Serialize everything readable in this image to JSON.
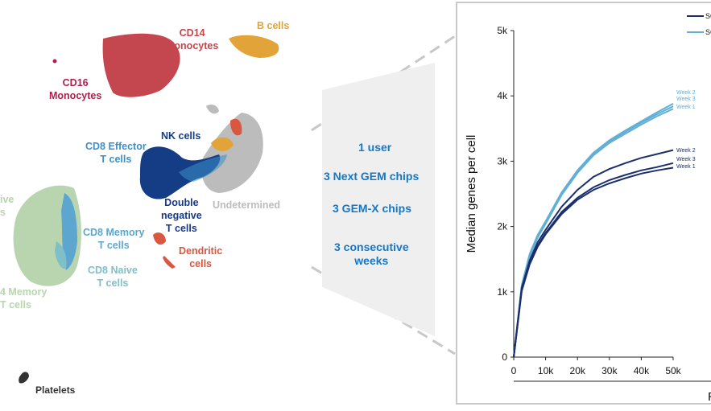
{
  "umap": {
    "labels": {
      "cd14": "CD14\nMonocytes",
      "bcells": "B cells",
      "cd16": "CD16\nMonocytes",
      "nk": "NK cells",
      "cd8eff": "CD8  Effector\nT cells",
      "dneg": "Double\nnegative\nT cells",
      "undet": "Undetermined",
      "cd8mem": "CD8 Memory\nT cells",
      "dendritic": "Dendritic\ncells",
      "cd8naive": "CD8 Naive\nT cells",
      "naive_partial": "ive\ns",
      "memory_partial": "4 Memory\nT cells",
      "platelets": "Platelets"
    },
    "colors": {
      "cd14": "#c4464e",
      "bcells": "#e2a438",
      "cd16": "#b0214e",
      "nk": "#143d86",
      "cd8eff": "#3b8fc8",
      "dneg": "#17398a",
      "undet": "#bcbcbc",
      "cd8mem": "#5ca6cf",
      "dendritic": "#d9563f",
      "cd8naive": "#7fc0c8",
      "cd4": "#b8d5b0",
      "platelets": "#333333"
    }
  },
  "callout": {
    "lines": [
      "1 user",
      "3  Next GEM chips",
      "3 GEM-X chips",
      "3 consecutive\nweeks"
    ],
    "color": "#1477c8"
  },
  "chart_data": {
    "type": "line",
    "title": "",
    "ylabel": "Median genes per cell",
    "xlabel": "R",
    "xlim": [
      0,
      50000
    ],
    "ylim": [
      0,
      5000
    ],
    "x_ticks": [
      0,
      10000,
      20000,
      30000,
      40000,
      50000
    ],
    "x_tick_labels": [
      "0",
      "10k",
      "20k",
      "30k",
      "40k",
      "50k"
    ],
    "y_ticks": [
      0,
      1000,
      2000,
      3000,
      4000,
      5000
    ],
    "y_tick_labels": [
      "0",
      "1k",
      "2k",
      "3k",
      "4k",
      "5k"
    ],
    "legend": {
      "position": "top-right",
      "entries": [
        "SC",
        "SC"
      ],
      "colors": [
        "#1b2f6e",
        "#62afd6"
      ]
    },
    "x": [
      0,
      2500,
      5000,
      7500,
      10000,
      15000,
      20000,
      25000,
      30000,
      35000,
      40000,
      45000,
      50000
    ],
    "series": [
      {
        "name": "Week 2",
        "group": 1,
        "color": "#62afd6",
        "values": [
          0,
          1100,
          1580,
          1870,
          2080,
          2520,
          2860,
          3130,
          3320,
          3470,
          3610,
          3750,
          3880
        ]
      },
      {
        "name": "Week 3",
        "group": 1,
        "color": "#62afd6",
        "values": [
          0,
          1090,
          1560,
          1850,
          2060,
          2500,
          2840,
          3110,
          3300,
          3450,
          3590,
          3720,
          3840
        ]
      },
      {
        "name": "Week 1",
        "group": 1,
        "color": "#62afd6",
        "values": [
          0,
          1070,
          1540,
          1830,
          2040,
          2480,
          2820,
          3090,
          3280,
          3420,
          3560,
          3690,
          3800
        ]
      },
      {
        "name": "Week 2",
        "group": 2,
        "color": "#1b2f6e",
        "values": [
          0,
          1060,
          1480,
          1760,
          1950,
          2300,
          2560,
          2760,
          2880,
          2970,
          3050,
          3110,
          3170
        ]
      },
      {
        "name": "Week 3",
        "group": 2,
        "color": "#1b2f6e",
        "values": [
          0,
          1030,
          1440,
          1710,
          1900,
          2220,
          2440,
          2600,
          2710,
          2790,
          2860,
          2910,
          2970
        ]
      },
      {
        "name": "Week 1",
        "group": 2,
        "color": "#1b2f6e",
        "values": [
          0,
          1010,
          1420,
          1690,
          1880,
          2190,
          2410,
          2560,
          2660,
          2740,
          2810,
          2860,
          2900
        ]
      }
    ]
  }
}
